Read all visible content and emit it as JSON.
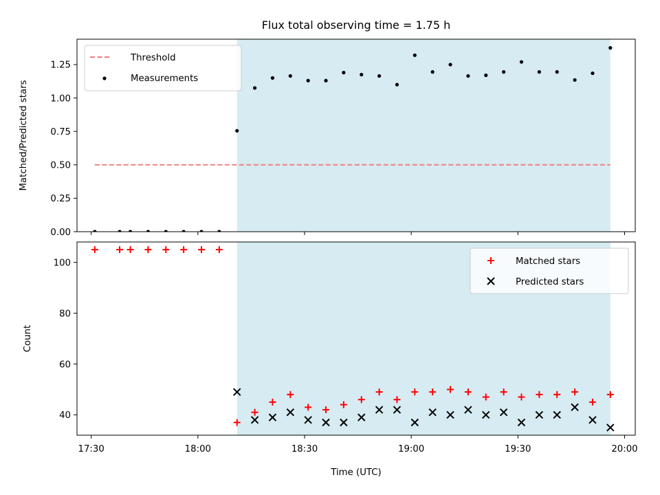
{
  "chart_data": {
    "type": "scatter",
    "title": "Flux total observing time = 1.75 h",
    "xlabel": "Time (UTC)",
    "x_tick_labels": [
      "17:30",
      "18:00",
      "18:30",
      "19:00",
      "19:30",
      "20:00"
    ],
    "x_tick_values": [
      "17:30",
      "18:00",
      "18:30",
      "19:00",
      "19:30",
      "20:00"
    ],
    "xlim": [
      "17:26",
      "20:03"
    ],
    "shaded_region": {
      "x": [
        "18:11",
        "19:56"
      ],
      "color": "#add8e6"
    },
    "colors": {
      "threshold": "#f08080",
      "measurements": "#000000",
      "matched": "#ff0000",
      "predicted": "#000000"
    },
    "panels": [
      {
        "id": "top",
        "ylabel": "Matched/Predicted stars",
        "ylim": [
          0,
          1.44
        ],
        "y_ticks": [
          0.0,
          0.25,
          0.5,
          0.75,
          1.0,
          1.25
        ],
        "y_tick_labels": [
          "0.00",
          "0.25",
          "0.50",
          "0.75",
          "1.00",
          "1.25"
        ],
        "legend": {
          "placement": "upper-left",
          "entries": [
            "Threshold",
            "Measurements"
          ]
        },
        "threshold": {
          "name": "Threshold",
          "y": 0.5,
          "x": [
            "17:31",
            "19:56"
          ]
        },
        "measurements": {
          "name": "Measurements",
          "x": [
            "17:31",
            "17:38",
            "17:41",
            "17:46",
            "17:51",
            "17:56",
            "18:01",
            "18:06",
            "18:11",
            "18:16",
            "18:21",
            "18:26",
            "18:31",
            "18:36",
            "18:41",
            "18:46",
            "18:51",
            "18:56",
            "19:01",
            "19:06",
            "19:11",
            "19:16",
            "19:21",
            "19:26",
            "19:31",
            "19:36",
            "19:41",
            "19:46",
            "19:51",
            "19:56"
          ],
          "y": [
            0.0,
            0.0,
            0.0,
            0.0,
            0.0,
            0.0,
            0.0,
            0.0,
            0.755,
            1.075,
            1.15,
            1.165,
            1.13,
            1.13,
            1.19,
            1.175,
            1.165,
            1.1,
            1.32,
            1.195,
            1.25,
            1.165,
            1.17,
            1.195,
            1.27,
            1.195,
            1.195,
            1.135,
            1.185,
            1.375
          ]
        }
      },
      {
        "id": "bottom",
        "ylabel": "Count",
        "ylim": [
          32,
          108
        ],
        "y_ticks": [
          40,
          60,
          80,
          100
        ],
        "y_tick_labels": [
          "40",
          "60",
          "80",
          "100"
        ],
        "legend": {
          "placement": "upper-right",
          "entries": [
            "Matched stars",
            "Predicted stars"
          ]
        },
        "matched": {
          "name": "Matched stars",
          "x": [
            "17:31",
            "17:38",
            "17:41",
            "17:46",
            "17:51",
            "17:56",
            "18:01",
            "18:06",
            "18:11",
            "18:16",
            "18:21",
            "18:26",
            "18:31",
            "18:36",
            "18:41",
            "18:46",
            "18:51",
            "18:56",
            "19:01",
            "19:06",
            "19:11",
            "19:16",
            "19:21",
            "19:26",
            "19:31",
            "19:36",
            "19:41",
            "19:46",
            "19:51",
            "19:56"
          ],
          "y": [
            105,
            105,
            105,
            105,
            105,
            105,
            105,
            105,
            37,
            41,
            45,
            48,
            43,
            42,
            44,
            46,
            49,
            46,
            49,
            49,
            50,
            49,
            47,
            49,
            47,
            48,
            48,
            49,
            45,
            48
          ]
        },
        "predicted": {
          "name": "Predicted stars",
          "x": [
            "18:11",
            "18:16",
            "18:21",
            "18:26",
            "18:31",
            "18:36",
            "18:41",
            "18:46",
            "18:51",
            "18:56",
            "19:01",
            "19:06",
            "19:11",
            "19:16",
            "19:21",
            "19:26",
            "19:31",
            "19:36",
            "19:41",
            "19:46",
            "19:51",
            "19:56"
          ],
          "y": [
            49,
            38,
            39,
            41,
            38,
            37,
            37,
            39,
            42,
            42,
            37,
            41,
            40,
            42,
            40,
            41,
            37,
            40,
            40,
            43,
            38,
            35
          ]
        }
      }
    ]
  }
}
